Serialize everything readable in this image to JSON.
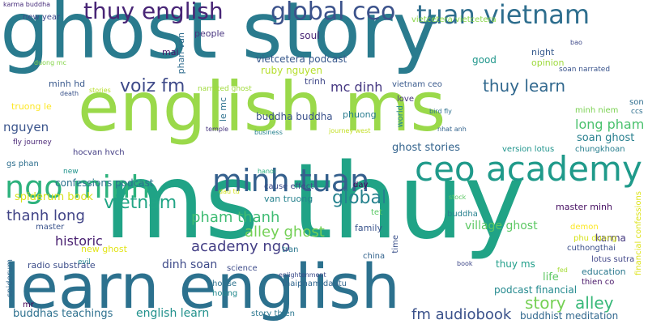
{
  "palette": {
    "background": "#ffffff"
  },
  "words": [
    {
      "text": "ghost story",
      "color": "#2a7b8e"
    },
    {
      "text": "english ms",
      "color": "#9ad94a"
    },
    {
      "text": "ms thuy",
      "color": "#20a386"
    },
    {
      "text": "learn english",
      "color": "#2c718e"
    },
    {
      "text": "ngo minh",
      "color": "#2db27d"
    },
    {
      "text": "minh tuan",
      "color": "#35608d"
    },
    {
      "text": "ceo academy",
      "color": "#1f9a8a"
    },
    {
      "text": "tuan vietnam",
      "color": "#2e6e8e"
    },
    {
      "text": "global ceo",
      "color": "#3b528b"
    },
    {
      "text": "thuy english",
      "color": "#482576"
    },
    {
      "text": "voiz fm",
      "color": "#3e4a89"
    },
    {
      "text": "thuy learn",
      "color": "#31688e"
    },
    {
      "text": "vietnam",
      "color": "#21a585"
    },
    {
      "text": "global",
      "color": "#26828e"
    },
    {
      "text": "alley ghost",
      "color": "#73d055"
    },
    {
      "text": "story",
      "color": "#75d054"
    },
    {
      "text": "alley",
      "color": "#37b878"
    },
    {
      "text": "thanh long",
      "color": "#414487"
    },
    {
      "text": "pham thanh",
      "color": "#3fbc73"
    },
    {
      "text": "academy ngo",
      "color": "#433e85"
    },
    {
      "text": "fm audiobook",
      "color": "#3b528b"
    },
    {
      "text": "english learn",
      "color": "#21918c"
    },
    {
      "text": "mc dinh",
      "color": "#453781"
    },
    {
      "text": "nguyen",
      "color": "#3a548c"
    },
    {
      "text": "long pham",
      "color": "#4ac16d"
    },
    {
      "text": "historic",
      "color": "#481f70"
    },
    {
      "text": "ghost stories",
      "color": "#33638d"
    },
    {
      "text": "village ghost",
      "color": "#5cc863"
    },
    {
      "text": "soan ghost",
      "color": "#277f8e"
    },
    {
      "text": "dinh soan",
      "color": "#3e4a89"
    },
    {
      "text": "buddhas teachings",
      "color": "#2d708e"
    },
    {
      "text": "buddhist meditation",
      "color": "#31688e"
    },
    {
      "text": "ruby nguyen",
      "color": "#b5de2b"
    },
    {
      "text": "vietcetera podcast",
      "color": "#38588c"
    },
    {
      "text": "confessions podcast",
      "color": "#2c728e"
    },
    {
      "text": "spiderum book",
      "color": "#d8e219"
    },
    {
      "text": "buddha buddha",
      "color": "#3b528b"
    },
    {
      "text": "thuy ms",
      "color": "#1f9e89"
    },
    {
      "text": "podcast financial",
      "color": "#23898e"
    },
    {
      "text": "soul",
      "color": "#482475"
    },
    {
      "text": "people",
      "color": "#46337e"
    },
    {
      "text": "mai",
      "color": "#48196b"
    },
    {
      "text": "life",
      "color": "#5ec962"
    },
    {
      "text": "karma",
      "color": "#44397f"
    },
    {
      "text": "good",
      "color": "#1f968b"
    },
    {
      "text": "night",
      "color": "#375b8d"
    },
    {
      "text": "opinion",
      "color": "#9dd93b"
    },
    {
      "text": "master minh",
      "color": "#471063"
    },
    {
      "text": "minh hd",
      "color": "#38588c"
    },
    {
      "text": "trinh",
      "color": "#3f4788"
    },
    {
      "text": "phuong",
      "color": "#287c8e"
    },
    {
      "text": "family",
      "color": "#3a548c"
    },
    {
      "text": "vietcetera vietcetera",
      "color": "#89d548"
    },
    {
      "text": "new year",
      "color": "#3e4989"
    },
    {
      "text": "truong le",
      "color": "#fde725"
    },
    {
      "text": "hocvan hvch",
      "color": "#433d84"
    },
    {
      "text": "gs phan",
      "color": "#2e6f8e"
    },
    {
      "text": "van truong",
      "color": "#26828e"
    },
    {
      "text": "radio substrate",
      "color": "#3d4e8a"
    },
    {
      "text": "new ghost",
      "color": "#e2e418"
    },
    {
      "text": "education",
      "color": "#2a788e"
    },
    {
      "text": "thien co",
      "color": "#481668"
    },
    {
      "text": "lotus sutra",
      "color": "#404588"
    },
    {
      "text": "chungkhoan",
      "color": "#277e8e"
    },
    {
      "text": "demon",
      "color": "#fbe723"
    },
    {
      "text": "cuthongthai",
      "color": "#3c508b"
    },
    {
      "text": "phu duong",
      "color": "#d5e21a"
    },
    {
      "text": "version lotus",
      "color": "#1f948c"
    },
    {
      "text": "vietnam ceo",
      "color": "#38598c"
    },
    {
      "text": "day",
      "color": "#440256"
    },
    {
      "text": "master",
      "color": "#3a538b"
    },
    {
      "text": "tet",
      "color": "#5ac864"
    },
    {
      "text": "china",
      "color": "#33638d"
    },
    {
      "text": "house",
      "color": "#2c728e"
    },
    {
      "text": "hoang",
      "color": "#23898e"
    },
    {
      "text": "story thien",
      "color": "#2a768e"
    },
    {
      "text": "new",
      "color": "#20938c"
    },
    {
      "text": "evil",
      "color": "#25848e"
    },
    {
      "text": "science",
      "color": "#3e4c8a"
    },
    {
      "text": "thaipham dautu",
      "color": "#31668e"
    },
    {
      "text": "minh niem",
      "color": "#7ad151"
    },
    {
      "text": "son",
      "color": "#2e6d8e"
    },
    {
      "text": "ccs",
      "color": "#2e6f8e"
    },
    {
      "text": "love",
      "color": "#46327e"
    },
    {
      "text": "buddha",
      "color": "#26818e"
    },
    {
      "text": "fly journey",
      "color": "#4c2a78"
    },
    {
      "text": "narrated ghost",
      "color": "#9fda3a"
    },
    {
      "text": "phan van",
      "color": "#2f6c8e"
    },
    {
      "text": "le mc",
      "color": "#2d718e"
    },
    {
      "text": "world",
      "color": "#24878e"
    },
    {
      "text": "soan narrated",
      "color": "#3a548c"
    },
    {
      "text": "financial confessions",
      "color": "#dde318"
    },
    {
      "text": "spiderum",
      "color": "#31688e"
    },
    {
      "text": "cause effect",
      "color": "#3e4c8a"
    },
    {
      "text": "time",
      "color": "#3b518b"
    },
    {
      "text": "mr",
      "color": "#440154"
    },
    {
      "text": "tran",
      "color": "#2a778e"
    },
    {
      "text": "death",
      "color": "#3a538b"
    },
    {
      "text": "temple",
      "color": "#45337d"
    },
    {
      "text": "business",
      "color": "#26818e"
    },
    {
      "text": "journey west",
      "color": "#c2df23"
    },
    {
      "text": "hanoi",
      "color": "#29af7f"
    },
    {
      "text": "enlightenment",
      "color": "#3d4d8a"
    },
    {
      "text": "stories",
      "color": "#b8de29"
    },
    {
      "text": "duong mc",
      "color": "#85d54a"
    },
    {
      "text": "bao",
      "color": "#3e4989"
    },
    {
      "text": "bird fly",
      "color": "#2d708e"
    },
    {
      "text": "nhat anh",
      "color": "#33638d"
    },
    {
      "text": "fed",
      "color": "#a5db36"
    },
    {
      "text": "book",
      "color": "#3f4889"
    },
    {
      "text": "karma buddha",
      "color": "#472d7b"
    },
    {
      "text": "stock",
      "color": "#5cc863"
    },
    {
      "text": "dau tu",
      "color": "#d2e21b"
    }
  ]
}
